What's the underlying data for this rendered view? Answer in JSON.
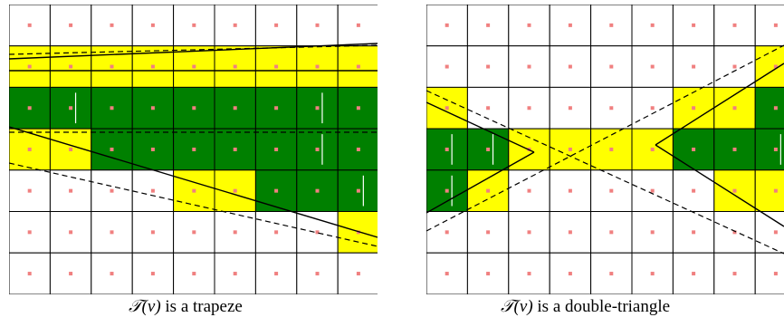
{
  "colors": {
    "green": "#008000",
    "yellow": "#ffff00",
    "white": "#ffffff",
    "grid_line": "#000000",
    "center_dot": "#f08080",
    "slanted_line": "#000000",
    "dashed_line": "#000000"
  },
  "panels": [
    {
      "id": "trapeze",
      "caption": {
        "math": "𝒯(v)",
        "text": " is a trapeze"
      },
      "cell_types": [
        "WWWWWWWWW",
        "YYYYYYYYY",
        "GGGGGGGGG",
        "YYGGGGGGG",
        "WWWWYYGGG",
        "WWWWWWWWY",
        "WWWWWWWWW"
      ],
      "white_ticks": [
        {
          "row": 2,
          "col": 1
        },
        {
          "row": 2,
          "col": 7
        },
        {
          "row": 3,
          "col": 7
        },
        {
          "row": 4,
          "col": 8
        }
      ]
    },
    {
      "id": "double-triangle",
      "caption": {
        "math": "𝒯(v)",
        "text": " is a double-triangle"
      },
      "cell_types": [
        "WWWWWWWWW",
        "WWWWWWWWY",
        "YWWWWWYYG",
        "GGYYYYGGG",
        "GYWWWWWYY",
        "WWWWWWWWW",
        "WWWWWWWWW"
      ],
      "white_ticks": [
        {
          "row": 3,
          "col": 0
        },
        {
          "row": 3,
          "col": 1
        },
        {
          "row": 4,
          "col": 0
        },
        {
          "row": 3,
          "col": 8
        }
      ]
    }
  ]
}
